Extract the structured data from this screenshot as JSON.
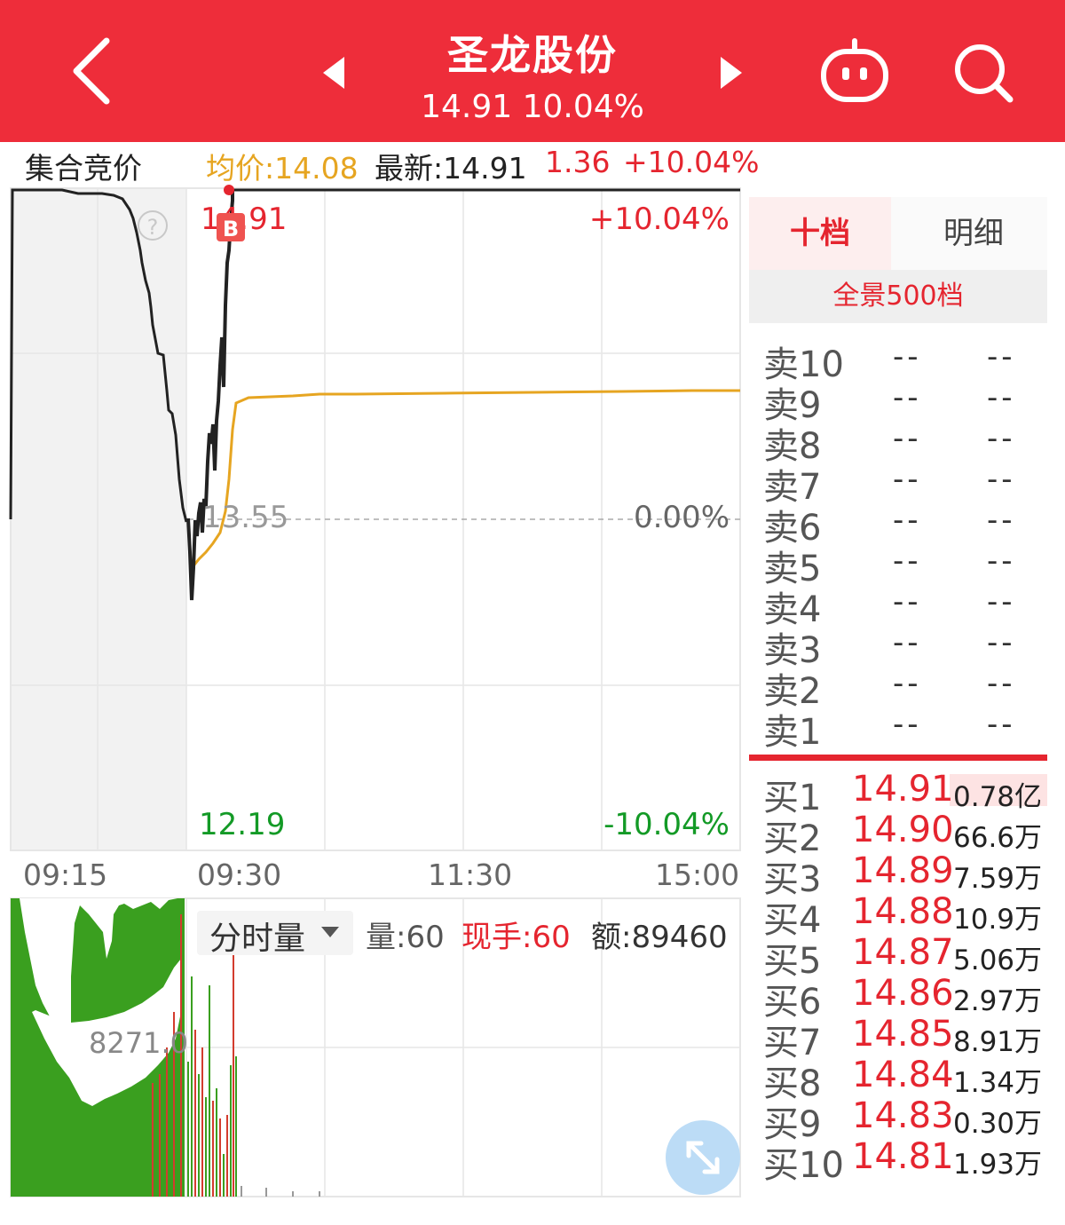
{
  "header": {
    "title": "圣龙股份",
    "price_line": "14.91 10.04%"
  },
  "info_bar": {
    "mode": "集合竞价",
    "avg": "均价:14.08",
    "latest": "最新:14.91",
    "change": "1.36",
    "change_pct": "+10.04%"
  },
  "price_chart": {
    "high_price": "14.91",
    "mid_price": "13.55",
    "low_price": "12.19",
    "high_pct": "+10.04%",
    "mid_pct": "0.00%",
    "low_pct": "-10.04%",
    "badge": "B",
    "help_icon": "?"
  },
  "time_axis": [
    "09:15",
    "09:30",
    "11:30",
    "15:00"
  ],
  "volume_panel": {
    "selector": "分时量",
    "volume": "量:60",
    "current_hand": "现手:60",
    "amount": "额:89460",
    "peak_label": "8271.0"
  },
  "order_book": {
    "tabs": [
      "十档",
      "明细"
    ],
    "full_depth": "全景500档",
    "asks": [
      {
        "label": "卖10",
        "price": "--",
        "vol": "--"
      },
      {
        "label": "卖9",
        "price": "--",
        "vol": "--"
      },
      {
        "label": "卖8",
        "price": "--",
        "vol": "--"
      },
      {
        "label": "卖7",
        "price": "--",
        "vol": "--"
      },
      {
        "label": "卖6",
        "price": "--",
        "vol": "--"
      },
      {
        "label": "卖5",
        "price": "--",
        "vol": "--"
      },
      {
        "label": "卖4",
        "price": "--",
        "vol": "--"
      },
      {
        "label": "卖3",
        "price": "--",
        "vol": "--"
      },
      {
        "label": "卖2",
        "price": "--",
        "vol": "--"
      },
      {
        "label": "卖1",
        "price": "--",
        "vol": "--"
      }
    ],
    "bids": [
      {
        "label": "买1",
        "price": "14.91",
        "vol": "0.78亿"
      },
      {
        "label": "买2",
        "price": "14.90",
        "vol": "66.6万"
      },
      {
        "label": "买3",
        "price": "14.89",
        "vol": "7.59万"
      },
      {
        "label": "买4",
        "price": "14.88",
        "vol": "10.9万"
      },
      {
        "label": "买5",
        "price": "14.87",
        "vol": "5.06万"
      },
      {
        "label": "买6",
        "price": "14.86",
        "vol": "2.97万"
      },
      {
        "label": "买7",
        "price": "14.85",
        "vol": "8.91万"
      },
      {
        "label": "买8",
        "price": "14.84",
        "vol": "1.34万"
      },
      {
        "label": "买9",
        "price": "14.83",
        "vol": "0.30万"
      },
      {
        "label": "买10",
        "price": "14.81",
        "vol": "1.93万"
      }
    ]
  },
  "colors": {
    "header_bg": "#ee2d3a",
    "up": "#e5252f",
    "down": "#139a26",
    "avg_line": "#e6a521",
    "price_line": "#222222"
  },
  "icons": [
    "back-arrow-icon",
    "prev-stock-icon",
    "next-stock-icon",
    "robot-assistant-icon",
    "search-icon",
    "expand-icon"
  ]
}
